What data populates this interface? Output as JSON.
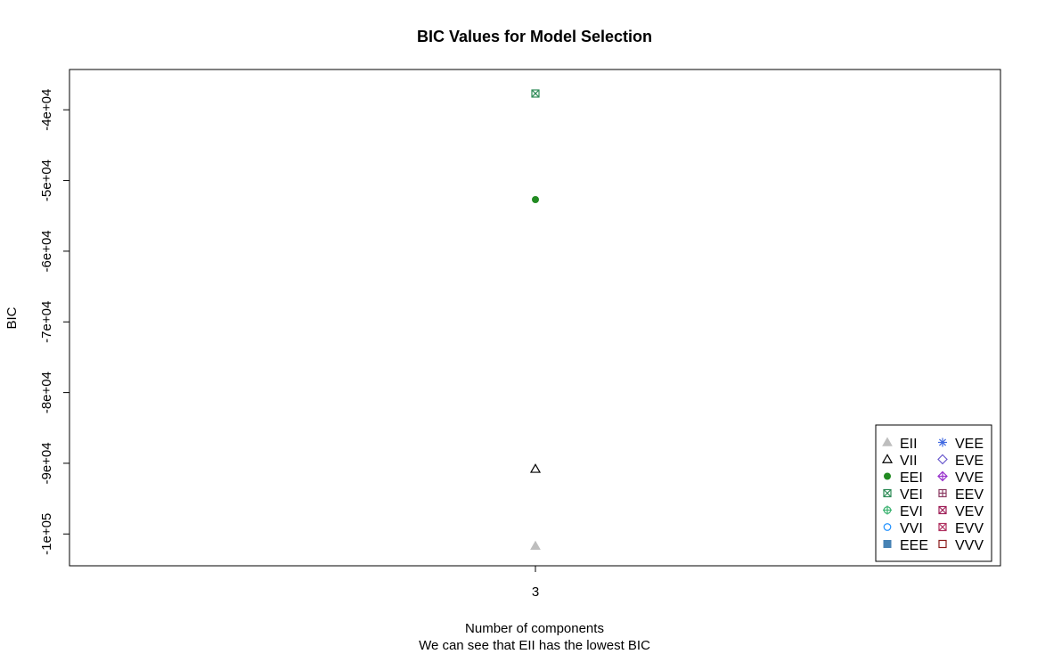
{
  "chart_data": {
    "type": "scatter",
    "title": "BIC Values for Model Selection",
    "xlabel": "Number of components",
    "subtitle": "We can see that EII has the lowest BIC",
    "ylabel": "BIC",
    "x_ticks": [
      "3"
    ],
    "y_ticks": [
      {
        "value": -40000,
        "label": "-4e+04"
      },
      {
        "value": -50000,
        "label": "-5e+04"
      },
      {
        "value": -60000,
        "label": "-6e+04"
      },
      {
        "value": -70000,
        "label": "-7e+04"
      },
      {
        "value": -80000,
        "label": "-8e+04"
      },
      {
        "value": -90000,
        "label": "-9e+04"
      },
      {
        "value": -100000,
        "label": "-1e+05"
      }
    ],
    "ylim": [
      -104500,
      -40000
    ],
    "y_axis_max": -34300,
    "legend_placement": "bottom-right",
    "series": [
      {
        "name": "EII",
        "symbol": "triangle-filled",
        "color": "#bebebe",
        "points": [
          {
            "x": 3,
            "y": -101700
          }
        ]
      },
      {
        "name": "VII",
        "symbol": "triangle-open",
        "color": "#000000",
        "points": [
          {
            "x": 3,
            "y": -90800
          }
        ]
      },
      {
        "name": "EEI",
        "symbol": "circle-filled",
        "color": "#228b22",
        "points": [
          {
            "x": 3,
            "y": -52700
          }
        ]
      },
      {
        "name": "VEI",
        "symbol": "square-x",
        "color": "#2e8b57",
        "points": [
          {
            "x": 3,
            "y": -37700
          }
        ]
      },
      {
        "name": "EVI",
        "symbol": "circle-plus",
        "color": "#3cb371",
        "points": []
      },
      {
        "name": "VVI",
        "symbol": "circle-open",
        "color": "#1e90ff",
        "points": []
      },
      {
        "name": "EEE",
        "symbol": "square-filled",
        "color": "#4682b4",
        "points": []
      },
      {
        "name": "VEE",
        "symbol": "asterisk",
        "color": "#4169e1",
        "points": []
      },
      {
        "name": "EVE",
        "symbol": "diamond-open",
        "color": "#6a5acd",
        "points": []
      },
      {
        "name": "VVE",
        "symbol": "diamond-plus",
        "color": "#9932cc",
        "points": []
      },
      {
        "name": "EEV",
        "symbol": "square-plus",
        "color": "#8b3a62",
        "points": []
      },
      {
        "name": "VEV",
        "symbol": "square-x",
        "color": "#a0225a",
        "points": []
      },
      {
        "name": "EVV",
        "symbol": "square-x",
        "color": "#b03060",
        "points": []
      },
      {
        "name": "VVV",
        "symbol": "square-open",
        "color": "#8b1a1a",
        "points": []
      }
    ]
  }
}
